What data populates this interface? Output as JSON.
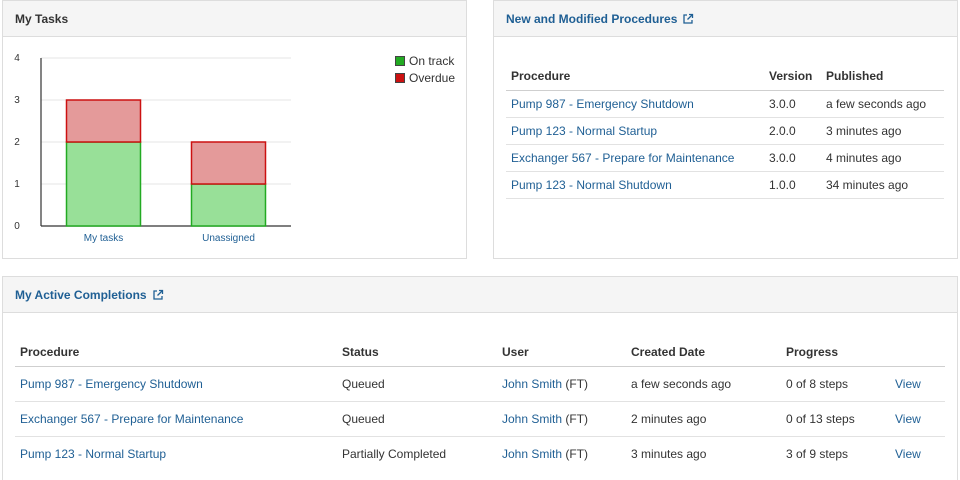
{
  "tasks_panel": {
    "title": "My Tasks",
    "legend": [
      {
        "label": "On track",
        "color": "#22aa22"
      },
      {
        "label": "Overdue",
        "color": "#cc1111"
      }
    ]
  },
  "chart_data": {
    "type": "bar",
    "stacked": true,
    "categories": [
      "My tasks",
      "Unassigned"
    ],
    "series": [
      {
        "name": "On track",
        "values": [
          2,
          1
        ],
        "fill": "#98e098",
        "stroke": "#22aa22"
      },
      {
        "name": "Overdue",
        "values": [
          1,
          1
        ],
        "fill": "#e49a9a",
        "stroke": "#cc1111"
      }
    ],
    "ylim": [
      0,
      4
    ],
    "yticks": [
      "0",
      "1",
      "2",
      "3",
      "4"
    ],
    "grid": true,
    "legend_position": "top-right"
  },
  "procedures_panel": {
    "title": "New and Modified Procedures",
    "columns": [
      "Procedure",
      "Version",
      "Published"
    ],
    "rows": [
      {
        "procedure": "Pump 987 - Emergency Shutdown",
        "version": "3.0.0",
        "published": "a few seconds ago"
      },
      {
        "procedure": "Pump 123 - Normal Startup",
        "version": "2.0.0",
        "published": "3 minutes ago"
      },
      {
        "procedure": "Exchanger 567 - Prepare for Maintenance",
        "version": "3.0.0",
        "published": "4 minutes ago"
      },
      {
        "procedure": "Pump 123 - Normal Shutdown",
        "version": "1.0.0",
        "published": "34 minutes ago"
      }
    ]
  },
  "completions_panel": {
    "title": "My Active Completions",
    "columns": [
      "Procedure",
      "Status",
      "User",
      "Created Date",
      "Progress",
      ""
    ],
    "rows": [
      {
        "procedure": "Pump 987 - Emergency Shutdown",
        "status": "Queued",
        "user": "John Smith",
        "user_suffix": "(FT)",
        "created": "a few seconds ago",
        "progress": "0 of 8 steps",
        "action": "View"
      },
      {
        "procedure": "Exchanger 567 - Prepare for Maintenance",
        "status": "Queued",
        "user": "John Smith",
        "user_suffix": "(FT)",
        "created": "2 minutes ago",
        "progress": "0 of 13 steps",
        "action": "View"
      },
      {
        "procedure": "Pump 123 - Normal Startup",
        "status": "Partially Completed",
        "user": "John Smith",
        "user_suffix": "(FT)",
        "created": "3 minutes ago",
        "progress": "3 of 9 steps",
        "action": "View"
      }
    ]
  },
  "icons": {
    "external_link": "external-link-icon"
  },
  "colors": {
    "link": "#1f5f94",
    "panel_header_bg": "#f5f5f5",
    "border": "#dddddd"
  }
}
